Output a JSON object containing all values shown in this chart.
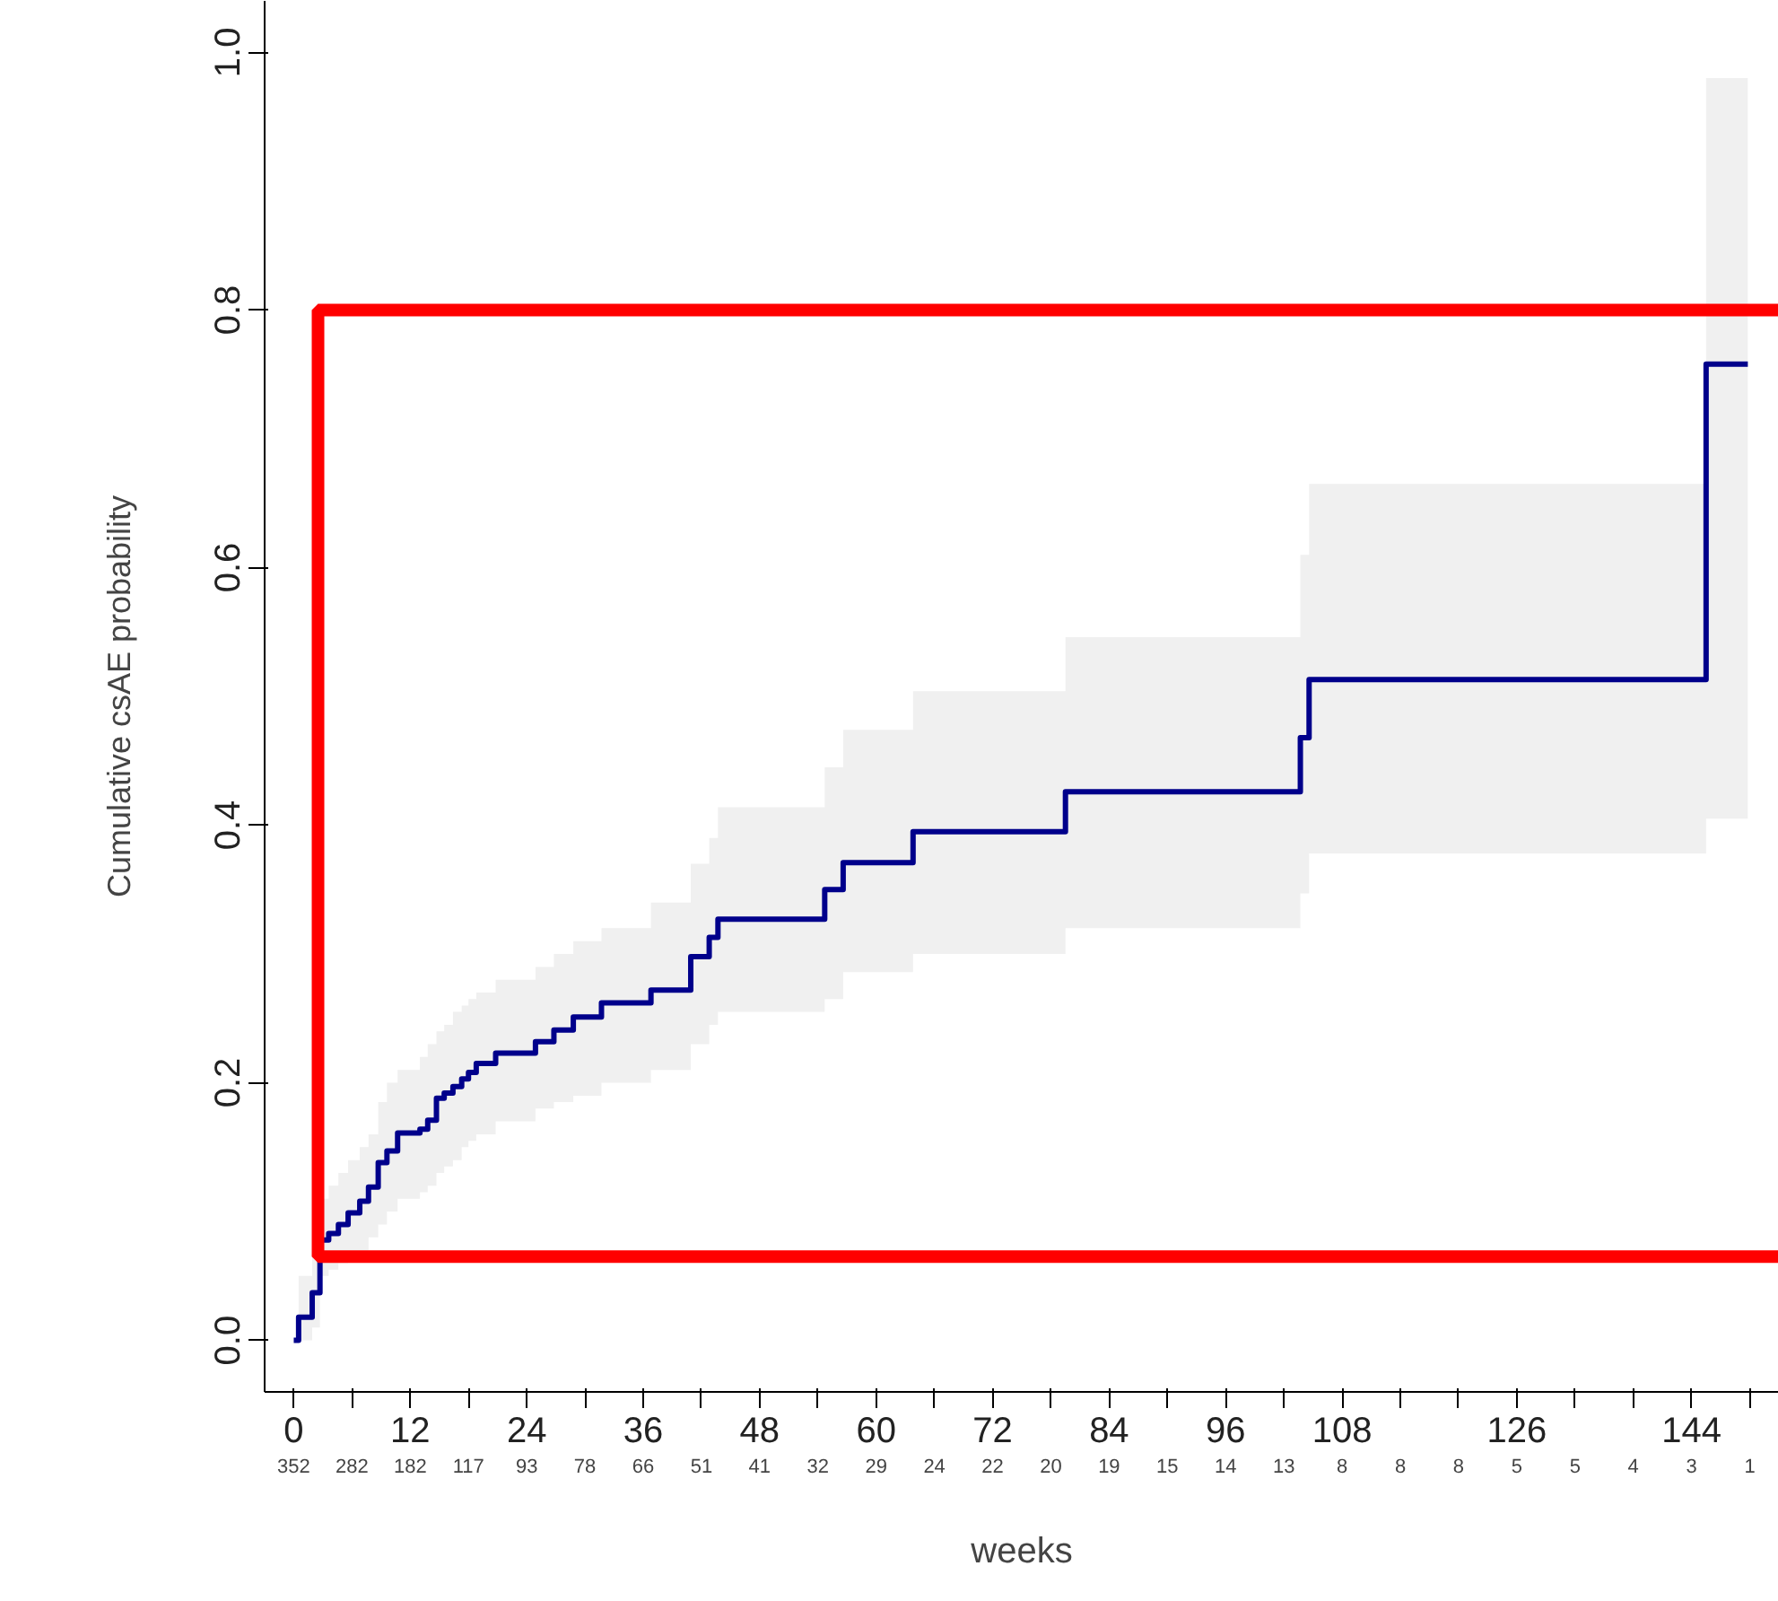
{
  "chart_data": {
    "type": "step",
    "xlabel": "weeks",
    "ylabel": "Cumulative csAE probability",
    "xlim": [
      -3,
      153
    ],
    "ylim": [
      -0.04,
      1.04
    ],
    "xticks": [
      0,
      {
        "value": 6,
        "label": null
      },
      12,
      {
        "value": 18,
        "label": null
      },
      24,
      {
        "value": 30,
        "label": null
      },
      36,
      {
        "value": 42,
        "label": null
      },
      48,
      {
        "value": 54,
        "label": null
      },
      60,
      {
        "value": 66,
        "label": null
      },
      72,
      {
        "value": 78,
        "label": null
      },
      84,
      {
        "value": 90,
        "label": null
      },
      96,
      {
        "value": 102,
        "label": null
      },
      108,
      {
        "value": 114,
        "label": null
      },
      {
        "value": 120,
        "label": null
      },
      126,
      {
        "value": 132,
        "label": null
      },
      {
        "value": 138,
        "label": null
      },
      144,
      {
        "value": 150,
        "label": null
      }
    ],
    "yticks": [
      {
        "value": 0,
        "label": "0.0"
      },
      0.2,
      0.4,
      0.6,
      0.8,
      {
        "value": 1,
        "label": "1.0"
      }
    ],
    "grid": false,
    "line_style": "solid",
    "marker": "none",
    "series": [
      {
        "color": "#00008b",
        "x": [
          0,
          0.5,
          1.9,
          2.7,
          3.6,
          4.6,
          5.6,
          6.8,
          7.7,
          8.7,
          9.6,
          10.7,
          13.0,
          13.8,
          14.7,
          15.5,
          16.4,
          17.3,
          18.0,
          18.8,
          20.8,
          24.9,
          26.8,
          28.8,
          31.7,
          36.8,
          40.9,
          42.8,
          43.7,
          54.7,
          56.6,
          63.8,
          79.5,
          103.7,
          104.6,
          145.5,
          149.8
        ],
        "values": [
          0,
          0.018,
          0.037,
          0.078,
          0.083,
          0.09,
          0.099,
          0.108,
          0.119,
          0.138,
          0.147,
          0.161,
          0.164,
          0.171,
          0.188,
          0.192,
          0.197,
          0.203,
          0.208,
          0.215,
          0.223,
          0.232,
          0.241,
          0.251,
          0.262,
          0.272,
          0.298,
          0.313,
          0.327,
          0.35,
          0.371,
          0.395,
          0.426,
          0.468,
          0.513,
          0.758,
          0.758
        ],
        "lower": [
          0,
          0.0,
          0.01,
          0.05,
          0.055,
          0.06,
          0.065,
          0.07,
          0.08,
          0.09,
          0.1,
          0.11,
          0.115,
          0.12,
          0.13,
          0.135,
          0.14,
          0.15,
          0.155,
          0.16,
          0.17,
          0.18,
          0.185,
          0.19,
          0.2,
          0.21,
          0.23,
          0.245,
          0.255,
          0.265,
          0.286,
          0.3,
          0.32,
          0.347,
          0.378,
          0.405,
          0.405
        ],
        "upper": [
          0,
          0.05,
          0.08,
          0.11,
          0.12,
          0.13,
          0.14,
          0.15,
          0.16,
          0.185,
          0.2,
          0.21,
          0.22,
          0.23,
          0.24,
          0.245,
          0.255,
          0.26,
          0.265,
          0.27,
          0.28,
          0.29,
          0.3,
          0.31,
          0.32,
          0.34,
          0.37,
          0.39,
          0.414,
          0.445,
          0.474,
          0.504,
          0.546,
          0.61,
          0.665,
          0.98,
          0.98
        ]
      }
    ],
    "annotations": [
      "352",
      "282",
      "182",
      "117",
      "93",
      "78",
      "66",
      "51",
      "41",
      "32",
      "29",
      "24",
      "22",
      "20",
      "19",
      "15",
      "14",
      "13",
      "8",
      "8",
      "8",
      "5",
      "5",
      "4",
      "3",
      "1"
    ]
  }
}
